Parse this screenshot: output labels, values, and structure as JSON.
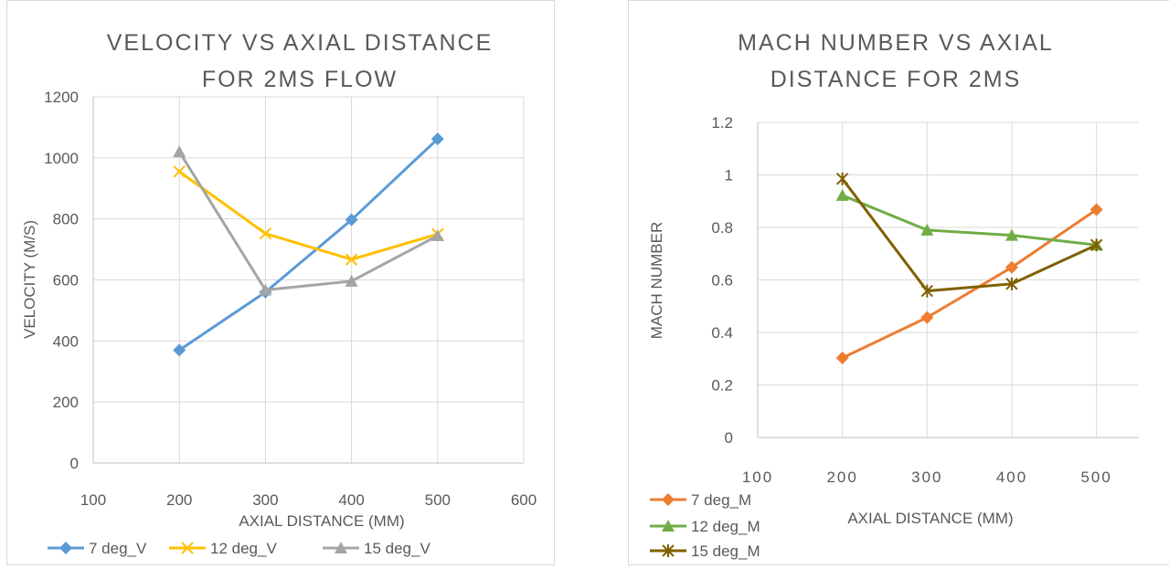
{
  "chart_data": [
    {
      "type": "line",
      "title_lines": [
        "VELOCITY VS AXIAL DISTANCE",
        "FOR 2MS FLOW"
      ],
      "xlabel": "AXIAL DISTANCE (MM)",
      "ylabel": "VELOCITY (M/S)",
      "xlim": [
        100,
        600
      ],
      "ylim": [
        0,
        1200
      ],
      "x_ticks": [
        100,
        200,
        300,
        400,
        500,
        600
      ],
      "y_ticks": [
        0,
        200,
        400,
        600,
        800,
        1000,
        1200
      ],
      "grid": true,
      "legend_position": "bottom",
      "series": [
        {
          "name": "7 deg_V",
          "color": "#5b9bd5",
          "marker": "diamond",
          "x": [
            200,
            300,
            400,
            500
          ],
          "y": [
            370,
            560,
            797,
            1062
          ]
        },
        {
          "name": "12 deg_V",
          "color": "#ffc000",
          "marker": "x",
          "x": [
            200,
            300,
            400,
            500
          ],
          "y": [
            955,
            752,
            667,
            750
          ]
        },
        {
          "name": "15 deg_V",
          "color": "#a5a5a5",
          "marker": "triangle",
          "x": [
            200,
            300,
            400,
            500
          ],
          "y": [
            1020,
            567,
            596,
            745
          ]
        }
      ]
    },
    {
      "type": "line",
      "title_lines": [
        "MACH NUMBER VS AXIAL",
        "DISTANCE FOR 2MS"
      ],
      "xlabel": "AXIAL DISTANCE (MM)",
      "ylabel": "MACH NUMBER",
      "xlim": [
        100,
        550
      ],
      "ylim": [
        0,
        1.2
      ],
      "x_ticks": [
        100,
        200,
        300,
        400,
        500
      ],
      "y_ticks": [
        0,
        0.2,
        0.4,
        0.6,
        0.8,
        1,
        1.2
      ],
      "grid": true,
      "legend_position": "bottom-left",
      "series": [
        {
          "name": "7 deg_M",
          "color": "#ed7d31",
          "marker": "diamond",
          "x": [
            200,
            300,
            400,
            500
          ],
          "y": [
            0.303,
            0.457,
            0.648,
            0.868
          ]
        },
        {
          "name": "12 deg_M",
          "color": "#70ad47",
          "marker": "triangle",
          "x": [
            200,
            300,
            400,
            500
          ],
          "y": [
            0.922,
            0.79,
            0.77,
            0.733
          ]
        },
        {
          "name": "15 deg_M",
          "color": "#806000",
          "marker": "star",
          "x": [
            200,
            300,
            400,
            500
          ],
          "y": [
            0.985,
            0.558,
            0.585,
            0.733
          ]
        }
      ]
    }
  ]
}
